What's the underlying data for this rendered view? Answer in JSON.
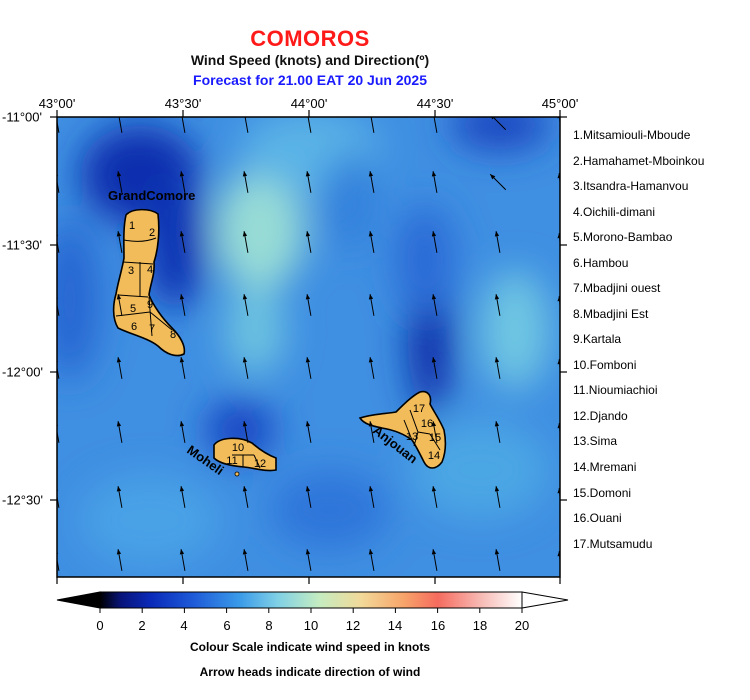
{
  "header": {
    "country": "COMOROS",
    "subtitle": "Wind Speed (knots) and Direction(º)",
    "forecast": "Forecast for  21.00 EAT 20 Jun 2025"
  },
  "axes": {
    "lon_labels": [
      "43°00'",
      "43°30'",
      "44°00'",
      "44°30'",
      "45°00'"
    ],
    "lat_labels": [
      "-11°00'",
      "-11°30'",
      "-12°00'",
      "-12°30'"
    ]
  },
  "islands": {
    "grand_comore": "GrandComore",
    "moheli": "Moheli",
    "anjouan": "Anjouan",
    "land_color": "#f2bc5a"
  },
  "region_numbers": [
    "1",
    "2",
    "3",
    "4",
    "5",
    "6",
    "7",
    "8",
    "9",
    "10",
    "11",
    "12",
    "13",
    "14",
    "15",
    "16",
    "17"
  ],
  "legend": [
    "1.Mitsamiouli-Mboude",
    "2.Hamahamet-Mboinkou",
    "3.Itsandra-Hamanvou",
    "4.Oichili-dimani",
    "5.Morono-Bambao",
    "6.Hambou",
    "7.Mbadjini ouest",
    "8.Mbadjini Est",
    "9.Kartala",
    "10.Fomboni",
    "11.Nioumiachioi",
    "12.Djando",
    "13.Sima",
    "14.Mremani",
    "15.Domoni",
    "16.Ouani",
    "17.Mutsamudu"
  ],
  "colorbar": {
    "ticks": [
      "0",
      "2",
      "4",
      "6",
      "8",
      "10",
      "12",
      "14",
      "16",
      "18",
      "20"
    ],
    "colors": [
      "#000000",
      "#0a1fa8",
      "#1e5ad8",
      "#3a9ae8",
      "#7fd0e6",
      "#c5ecc0",
      "#f2d999",
      "#f7a46a",
      "#f56b5e",
      "#f7b8b2",
      "#ffffff"
    ]
  },
  "notes": {
    "scale": "Colour Scale indicate wind speed in knots",
    "arrows": "Arrow heads indicate direction of wind"
  }
}
